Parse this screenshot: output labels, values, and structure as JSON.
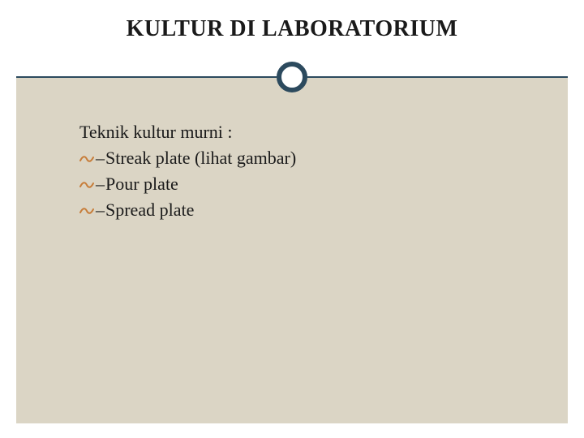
{
  "slide": {
    "title": "KULTUR DI LABORATORIUM",
    "intro": "Teknik kultur murni :",
    "bullets": [
      {
        "text": "Streak plate (lihat gambar)"
      },
      {
        "text": "Pour plate"
      },
      {
        "text": "Spread plate"
      }
    ]
  },
  "style": {
    "background_color": "#ffffff",
    "body_background": "#dbd5c5",
    "accent_color": "#2c4a5e",
    "bullet_color": "#c77d3a",
    "text_color": "#1a1a1a",
    "title_fontsize": 28,
    "body_fontsize": 22,
    "font_family": "Georgia, Times New Roman, serif"
  }
}
